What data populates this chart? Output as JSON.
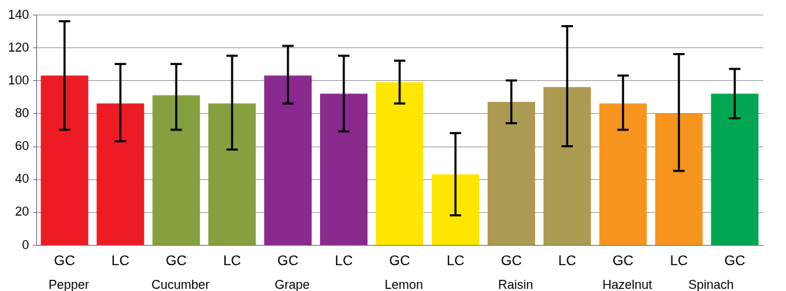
{
  "chart_data": {
    "type": "bar",
    "categories": [
      "GC",
      "LC",
      "GC",
      "LC",
      "GC",
      "LC",
      "GC",
      "LC",
      "GC",
      "LC",
      "GC",
      "LC",
      "GC"
    ],
    "values": [
      103,
      86,
      91,
      86,
      103,
      92,
      99,
      43,
      87,
      96,
      86,
      80,
      92
    ],
    "errors": [
      [
        70,
        136
      ],
      [
        63,
        110
      ],
      [
        70,
        110
      ],
      [
        58,
        115
      ],
      [
        86,
        121
      ],
      [
        69,
        115
      ],
      [
        86,
        112
      ],
      [
        18,
        68
      ],
      [
        74,
        100
      ],
      [
        60,
        133
      ],
      [
        70,
        103
      ],
      [
        45,
        116
      ],
      [
        77,
        107
      ]
    ],
    "colors": [
      "#ed1c24",
      "#ed1c24",
      "#87a03f",
      "#87a03f",
      "#8b2a8e",
      "#8b2a8e",
      "#ffe600",
      "#ffe600",
      "#ab9a52",
      "#ab9a52",
      "#f7941d",
      "#f7941d",
      "#00a651"
    ],
    "annotations": [
      "Pepper",
      "Cucumber",
      "Grape",
      "Lemon",
      "Raisin",
      "Hazelnut",
      "Spinach"
    ],
    "ylim": [
      0,
      140
    ],
    "yticks": [
      0,
      20,
      40,
      60,
      80,
      100,
      120,
      140
    ],
    "grid": "y"
  }
}
